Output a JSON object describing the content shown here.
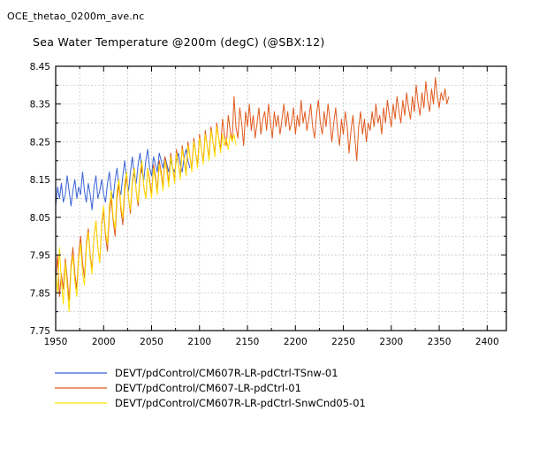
{
  "header": {
    "filename": "OCE_thetao_0200m_ave.nc",
    "title": "Sea Water Temperature @200m (degC) (@SBX:12)"
  },
  "chart_data": {
    "type": "line",
    "title": "Sea Water Temperature @200m (degC) (@SBX:12)",
    "xlabel": "",
    "ylabel": "",
    "xlim": [
      1950,
      2420
    ],
    "ylim": [
      7.75,
      8.45
    ],
    "xticks": [
      "1950",
      "2000",
      "2050",
      "2100",
      "2150",
      "2200",
      "2250",
      "2300",
      "2350",
      "2400"
    ],
    "yticks": [
      "7.75",
      "7.85",
      "7.95",
      "8.05",
      "8.15",
      "8.25",
      "8.35",
      "8.45"
    ],
    "grid": true,
    "legend_position": "bottom",
    "series": [
      {
        "name": "DEVT/pdControl/CM607R-LR-pdCtrl-TSnw-01",
        "color": "#3a62d8",
        "x_start": 1950,
        "x_step": 2,
        "values": [
          8.08,
          8.13,
          8.1,
          8.14,
          8.09,
          8.11,
          8.16,
          8.12,
          8.08,
          8.12,
          8.15,
          8.1,
          8.13,
          8.11,
          8.17,
          8.12,
          8.09,
          8.14,
          8.11,
          8.07,
          8.13,
          8.16,
          8.1,
          8.12,
          8.15,
          8.11,
          8.09,
          8.14,
          8.17,
          8.12,
          8.1,
          8.15,
          8.18,
          8.13,
          8.11,
          8.16,
          8.2,
          8.15,
          8.12,
          8.17,
          8.21,
          8.16,
          8.14,
          8.19,
          8.22,
          8.17,
          8.15,
          8.2,
          8.23,
          8.18,
          8.16,
          8.21,
          8.19,
          8.17,
          8.22,
          8.2,
          8.18,
          8.21,
          8.19,
          8.17,
          8.2,
          8.18,
          8.17,
          8.2,
          8.22,
          8.19,
          8.17,
          8.21,
          8.23,
          8.2,
          8.18
        ]
      },
      {
        "name": "DEVT/pdControl/CM607-LR-pdCtrl-01",
        "color": "#e05a1e",
        "x_start": 1950,
        "x_step": 2,
        "values": [
          7.88,
          7.95,
          7.84,
          7.9,
          7.86,
          7.94,
          7.89,
          7.83,
          7.92,
          7.97,
          7.9,
          7.86,
          7.95,
          8.0,
          7.93,
          7.89,
          7.98,
          8.02,
          7.95,
          7.91,
          8.0,
          8.04,
          7.97,
          7.93,
          8.03,
          8.07,
          8.0,
          7.96,
          8.06,
          8.1,
          8.04,
          8.0,
          8.1,
          8.14,
          8.07,
          8.03,
          8.12,
          8.16,
          8.1,
          8.06,
          8.14,
          8.18,
          8.12,
          8.08,
          8.16,
          8.19,
          8.13,
          8.1,
          8.18,
          8.15,
          8.11,
          8.19,
          8.16,
          8.12,
          8.2,
          8.17,
          8.13,
          8.21,
          8.18,
          8.14,
          8.22,
          8.18,
          8.15,
          8.23,
          8.19,
          8.16,
          8.24,
          8.2,
          8.17,
          8.25,
          8.21,
          8.18,
          8.26,
          8.22,
          8.19,
          8.27,
          8.23,
          8.2,
          8.28,
          8.24,
          8.21,
          8.29,
          8.25,
          8.22,
          8.3,
          8.26,
          8.23,
          8.31,
          8.27,
          8.24,
          8.32,
          8.28,
          8.25,
          8.37,
          8.29,
          8.26,
          8.34,
          8.3,
          8.24,
          8.33,
          8.29,
          8.35,
          8.28,
          8.32,
          8.26,
          8.3,
          8.34,
          8.27,
          8.31,
          8.33,
          8.28,
          8.35,
          8.3,
          8.26,
          8.33,
          8.29,
          8.32,
          8.27,
          8.31,
          8.35,
          8.29,
          8.33,
          8.28,
          8.3,
          8.34,
          8.27,
          8.32,
          8.29,
          8.36,
          8.3,
          8.33,
          8.28,
          8.31,
          8.35,
          8.29,
          8.26,
          8.32,
          8.36,
          8.3,
          8.27,
          8.33,
          8.29,
          8.35,
          8.31,
          8.25,
          8.3,
          8.34,
          8.28,
          8.24,
          8.31,
          8.27,
          8.33,
          8.29,
          8.22,
          8.28,
          8.32,
          8.26,
          8.2,
          8.29,
          8.33,
          8.27,
          8.31,
          8.25,
          8.3,
          8.28,
          8.33,
          8.29,
          8.35,
          8.3,
          8.32,
          8.27,
          8.34,
          8.3,
          8.36,
          8.32,
          8.29,
          8.35,
          8.31,
          8.37,
          8.33,
          8.3,
          8.36,
          8.32,
          8.38,
          8.34,
          8.31,
          8.37,
          8.33,
          8.4,
          8.35,
          8.32,
          8.38,
          8.34,
          8.41,
          8.36,
          8.33,
          8.39,
          8.35,
          8.42,
          8.37,
          8.34,
          8.38,
          8.36,
          8.39,
          8.35,
          8.37
        ]
      },
      {
        "name": "DEVT/pdControl/CM607R-LR-pdCtrl-SnwCnd05-01",
        "color": "#ffe000",
        "x_start": 1950,
        "x_step": 2,
        "values": [
          7.9,
          7.85,
          7.97,
          7.88,
          7.82,
          7.93,
          7.87,
          7.8,
          7.91,
          7.95,
          7.88,
          7.84,
          7.94,
          7.98,
          7.9,
          7.87,
          7.97,
          8.01,
          7.94,
          7.9,
          8.0,
          8.04,
          7.97,
          7.93,
          8.04,
          8.08,
          8.01,
          7.98,
          8.08,
          8.12,
          8.05,
          8.02,
          8.12,
          8.15,
          8.08,
          8.05,
          8.14,
          8.17,
          8.1,
          8.07,
          8.15,
          8.18,
          8.12,
          8.09,
          8.17,
          8.2,
          8.13,
          8.1,
          8.18,
          8.14,
          8.1,
          8.18,
          8.15,
          8.11,
          8.19,
          8.16,
          8.12,
          8.2,
          8.17,
          8.13,
          8.21,
          8.18,
          8.14,
          8.22,
          8.19,
          8.15,
          8.23,
          8.2,
          8.16,
          8.24,
          8.21,
          8.17,
          8.25,
          8.22,
          8.18,
          8.26,
          8.23,
          8.19,
          8.27,
          8.24,
          8.2,
          8.28,
          8.25,
          8.21,
          8.29,
          8.26,
          8.22,
          8.27,
          8.24,
          8.26,
          8.23,
          8.27,
          8.25,
          8.27,
          8.24
        ]
      }
    ]
  }
}
